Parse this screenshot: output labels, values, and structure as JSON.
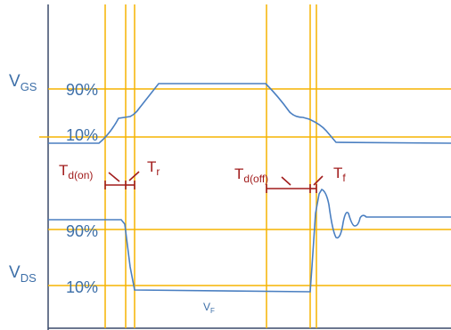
{
  "labels": {
    "vgs_main": "V",
    "vgs_sub": "GS",
    "vds_main": "V",
    "vds_sub": "DS",
    "vf_main": "V",
    "vf_sub": "F",
    "gs_90": "90%",
    "gs_10": "10%",
    "ds_90": "90%",
    "ds_10": "10%",
    "td_on_main": "T",
    "td_on_sub": "d(on)",
    "tr_main": "T",
    "tr_sub": "r",
    "td_off_main": "T",
    "td_off_sub": "d(off)",
    "tf_main": "T",
    "tf_sub": "f"
  },
  "colors": {
    "waveform": "#4a7fc1",
    "guides": "#f5b400",
    "axis": "#3a4a6a",
    "label_blue": "#3d6fa8",
    "label_red": "#a11c1c"
  }
}
